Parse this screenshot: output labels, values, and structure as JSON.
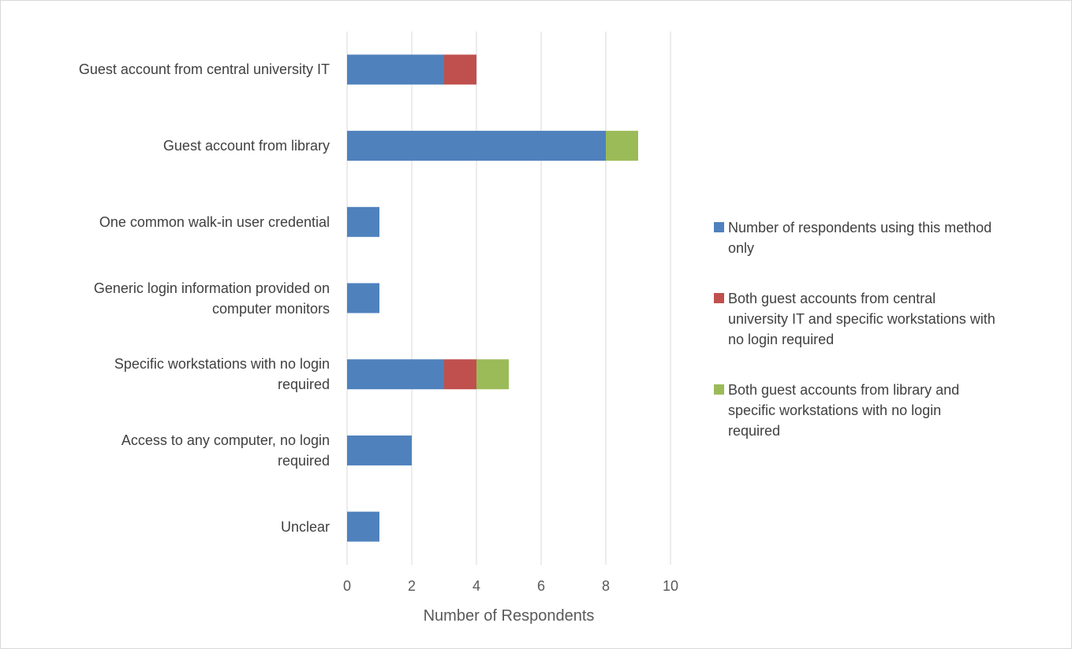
{
  "chart_data": {
    "type": "bar",
    "orientation": "horizontal",
    "stacked": true,
    "categories": [
      [
        "Guest account from central university IT"
      ],
      [
        "Guest account from library"
      ],
      [
        "One common walk-in user credential"
      ],
      [
        "Generic login information provided on",
        "computer monitors"
      ],
      [
        "Specific workstations with no login",
        "required"
      ],
      [
        "Access to any computer, no login",
        "required"
      ],
      [
        "Unclear"
      ]
    ],
    "series": [
      {
        "name": "Number of respondents using this method only",
        "color": "#4F81BD",
        "values": [
          3,
          8,
          1,
          1,
          3,
          2,
          1
        ]
      },
      {
        "name": "Both guest accounts from central university IT and specific workstations with no login required",
        "color": "#C0504D",
        "values": [
          1,
          0,
          0,
          0,
          1,
          0,
          0
        ]
      },
      {
        "name": "Both guest accounts from library and specific workstations with no login required",
        "color": "#9BBB59",
        "values": [
          0,
          1,
          0,
          0,
          1,
          0,
          0
        ]
      }
    ],
    "legend_lines": [
      [
        "Number of respondents using this method",
        "only"
      ],
      [
        "Both guest accounts from central",
        "university IT and specific workstations with",
        "no login required"
      ],
      [
        "Both guest accounts from library and",
        "specific workstations with no login",
        "required"
      ]
    ],
    "xlabel": "Number of Respondents",
    "xlim": [
      0,
      10
    ],
    "xticks": [
      0,
      2,
      4,
      6,
      8,
      10
    ],
    "grid": "vertical",
    "legend_position": "right"
  }
}
